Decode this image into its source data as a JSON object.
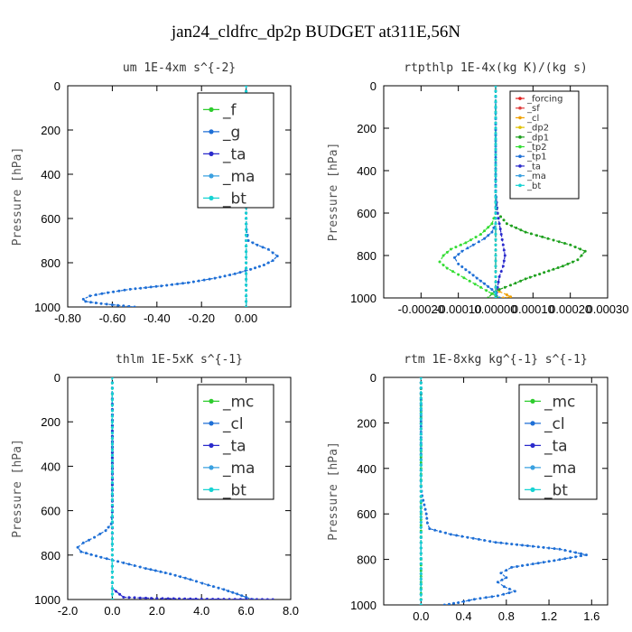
{
  "figure": {
    "title": "jan24_cldfrc_dp2p  BUDGET at311E,56N"
  },
  "chart_data": [
    {
      "type": "line",
      "title": "um  1E-4xm s^{-2}",
      "ylabel": "Pressure [hPa]",
      "xlim": [
        -0.8,
        0.2
      ],
      "ylim": [
        0,
        1000
      ],
      "y_inverted": true,
      "xticks": [
        -0.8,
        -0.6,
        -0.4,
        -0.2,
        0.0
      ],
      "xtick_labels": [
        "-0.80",
        "-0.60",
        "-0.40",
        "-0.20",
        "0.00"
      ],
      "yticks": [
        0,
        200,
        400,
        600,
        800,
        1000
      ],
      "ytick_labels": [
        "0",
        "200",
        "400",
        "600",
        "800",
        "1000"
      ],
      "legend": {
        "position": "top-right",
        "font_size": 17
      },
      "series": [
        {
          "name": "_f",
          "color": "#2ecc2e",
          "x": [
            0,
            0,
            0,
            0,
            0,
            0,
            0,
            0,
            0,
            0,
            0
          ],
          "y": [
            0,
            100,
            200,
            300,
            400,
            500,
            600,
            700,
            800,
            900,
            1000
          ]
        },
        {
          "name": "_g",
          "color": "#1e6fd6",
          "x": [
            0,
            0,
            0,
            0,
            0.002,
            0.01,
            0.05,
            0.1,
            0.14,
            0.12,
            0.08,
            0.02,
            -0.05,
            -0.14,
            -0.26,
            -0.38,
            -0.52,
            -0.62,
            -0.7,
            -0.73,
            -0.72,
            -0.65,
            -0.5
          ],
          "y": [
            0,
            200,
            400,
            600,
            650,
            700,
            720,
            740,
            770,
            790,
            810,
            830,
            850,
            870,
            890,
            905,
            920,
            935,
            950,
            965,
            975,
            985,
            1000
          ]
        },
        {
          "name": "_ta",
          "color": "#2b2bcc",
          "x": [
            0,
            0,
            0,
            0,
            0
          ],
          "y": [
            0,
            250,
            500,
            750,
            1000
          ]
        },
        {
          "name": "_ma",
          "color": "#3aa0e0",
          "x": [
            0,
            0,
            0,
            0,
            0
          ],
          "y": [
            0,
            250,
            500,
            750,
            1000
          ]
        },
        {
          "name": "_bt",
          "color": "#17d3d3",
          "x": [
            0,
            0,
            0,
            0,
            0
          ],
          "y": [
            0,
            250,
            500,
            750,
            1000
          ]
        }
      ]
    },
    {
      "type": "line",
      "title": "rtpthlp  1E-4x(kg K)/(kg s)",
      "ylabel": "Pressure [hPa]",
      "xlim": [
        -0.0003,
        0.0003
      ],
      "ylim": [
        0,
        1000
      ],
      "y_inverted": true,
      "xticks": [
        -0.0002,
        -0.0001,
        0.0,
        0.0001,
        0.0002,
        0.0003
      ],
      "xtick_labels": [
        "-0.00020",
        "-0.00010",
        "0.00000",
        "0.00010",
        "0.00020",
        "0.00030"
      ],
      "yticks": [
        0,
        200,
        400,
        600,
        800,
        1000
      ],
      "ytick_labels": [
        "0",
        "200",
        "400",
        "600",
        "800",
        "1000"
      ],
      "legend": {
        "position": "top-right",
        "font_size": 10
      },
      "series": [
        {
          "name": "_forcing",
          "color": "#e02020",
          "x": [
            0,
            0,
            0,
            0,
            0
          ],
          "y": [
            0,
            250,
            500,
            750,
            1000
          ]
        },
        {
          "name": "_sf",
          "color": "#e04040",
          "x": [
            0,
            0,
            0,
            0,
            0
          ],
          "y": [
            0,
            250,
            500,
            750,
            1000
          ]
        },
        {
          "name": "_cl",
          "color": "#f0a000",
          "x": [
            0,
            0,
            0,
            0,
            0,
            1e-05,
            3e-05,
            4e-05,
            2e-05
          ],
          "y": [
            0,
            600,
            800,
            900,
            950,
            970,
            985,
            995,
            1000
          ]
        },
        {
          "name": "_dp2",
          "color": "#e0c000",
          "x": [
            0,
            0,
            0,
            0
          ],
          "y": [
            0,
            500,
            900,
            1000
          ]
        },
        {
          "name": "_dp1",
          "color": "#1ea01e",
          "x": [
            0,
            0,
            5e-06,
            3e-05,
            8e-05,
            0.00014,
            0.0002,
            0.00024,
            0.00022,
            0.00018,
            0.00013,
            8e-05,
            4e-05,
            1e-05,
            -1e-05,
            -2e-05
          ],
          "y": [
            0,
            500,
            600,
            650,
            690,
            720,
            750,
            780,
            820,
            850,
            880,
            910,
            940,
            960,
            980,
            1000
          ]
        },
        {
          "name": "_tp2",
          "color": "#33dd33",
          "x": [
            0,
            0,
            -1e-05,
            -4e-05,
            -8e-05,
            -0.00012,
            -0.00014,
            -0.00015,
            -0.00013,
            -0.0001,
            -7e-05,
            -4e-05,
            -1e-05,
            1e-05
          ],
          "y": [
            0,
            600,
            650,
            700,
            740,
            770,
            800,
            830,
            860,
            890,
            920,
            950,
            980,
            1000
          ]
        },
        {
          "name": "_tp1",
          "color": "#1e6fd6",
          "x": [
            0,
            0,
            -1e-05,
            -3e-05,
            -6e-05,
            -9e-05,
            -0.00011,
            -0.0001,
            -7e-05,
            -4e-05,
            -1e-05,
            1e-05
          ],
          "y": [
            0,
            650,
            690,
            720,
            750,
            780,
            810,
            840,
            880,
            920,
            960,
            1000
          ]
        },
        {
          "name": "_ta",
          "color": "#2b2bcc",
          "x": [
            0,
            0,
            5e-06,
            1e-05,
            1.5e-05,
            2e-05,
            2.5e-05,
            2e-05,
            1e-05,
            5e-06,
            0
          ],
          "y": [
            0,
            500,
            600,
            650,
            700,
            750,
            800,
            850,
            900,
            950,
            1000
          ]
        },
        {
          "name": "_ma",
          "color": "#3aa0e0",
          "x": [
            0,
            0,
            0,
            0,
            0
          ],
          "y": [
            0,
            250,
            500,
            750,
            1000
          ]
        },
        {
          "name": "_bt",
          "color": "#17d3d3",
          "x": [
            0,
            0,
            0,
            0,
            0
          ],
          "y": [
            0,
            250,
            500,
            750,
            1000
          ]
        }
      ]
    },
    {
      "type": "line",
      "title": "thlm  1E-5xK s^{-1}",
      "ylabel": "Pressure [hPa]",
      "xlim": [
        -2.0,
        8.0
      ],
      "ylim": [
        0,
        1000
      ],
      "y_inverted": true,
      "xticks": [
        -2.0,
        0.0,
        2.0,
        4.0,
        6.0,
        8.0
      ],
      "xtick_labels": [
        "-2.0",
        "0.0",
        "2.0",
        "4.0",
        "6.0",
        "8.0"
      ],
      "yticks": [
        0,
        200,
        400,
        600,
        800,
        1000
      ],
      "ytick_labels": [
        "0",
        "200",
        "400",
        "600",
        "800",
        "1000"
      ],
      "legend": {
        "position": "top-right",
        "font_size": 17
      },
      "series": [
        {
          "name": "_mc",
          "color": "#2ecc2e",
          "x": [
            0,
            0,
            0,
            0,
            0,
            0,
            0,
            0,
            0,
            0,
            0
          ],
          "y": [
            0,
            100,
            200,
            300,
            400,
            500,
            600,
            700,
            800,
            900,
            1000
          ]
        },
        {
          "name": "_cl",
          "color": "#1e6fd6",
          "x": [
            0,
            0,
            -0.05,
            -0.3,
            -0.8,
            -1.3,
            -1.55,
            -1.4,
            -0.5,
            0.5,
            1.5,
            2.6,
            3.5,
            4.3,
            5.0,
            5.6,
            6.0,
            6.3
          ],
          "y": [
            0,
            600,
            660,
            690,
            720,
            745,
            765,
            785,
            810,
            835,
            860,
            885,
            910,
            935,
            955,
            975,
            990,
            1000
          ]
        },
        {
          "name": "_ta",
          "color": "#2b2bcc",
          "x": [
            0,
            0,
            0,
            0.5,
            2,
            4,
            6,
            7.2
          ],
          "y": [
            0,
            800,
            950,
            990,
            995,
            998,
            999,
            1000
          ]
        },
        {
          "name": "_ma",
          "color": "#3aa0e0",
          "x": [
            0,
            0,
            0,
            0,
            0
          ],
          "y": [
            0,
            250,
            500,
            750,
            1000
          ]
        },
        {
          "name": "_bt",
          "color": "#17d3d3",
          "x": [
            0,
            0,
            0,
            0,
            0
          ],
          "y": [
            0,
            250,
            500,
            750,
            1000
          ]
        }
      ]
    },
    {
      "type": "line",
      "title": "rtm  1E-8xkg kg^{-1} s^{-1}",
      "ylabel": "Pressure [hPa]",
      "xlim": [
        -0.35,
        1.75
      ],
      "ylim": [
        0,
        1000
      ],
      "y_inverted": true,
      "xticks": [
        0.0,
        0.4,
        0.8,
        1.2,
        1.6
      ],
      "xtick_labels": [
        "0.0",
        "0.4",
        "0.8",
        "1.2",
        "1.6"
      ],
      "yticks": [
        0,
        200,
        400,
        600,
        800,
        1000
      ],
      "ytick_labels": [
        "0",
        "200",
        "400",
        "600",
        "800",
        "1000"
      ],
      "legend": {
        "position": "top-right",
        "font_size": 17
      },
      "series": [
        {
          "name": "_mc",
          "color": "#2ecc2e",
          "x": [
            0,
            0,
            0,
            0,
            0,
            0,
            0,
            0,
            0,
            0,
            0
          ],
          "y": [
            0,
            100,
            200,
            300,
            400,
            500,
            600,
            700,
            800,
            900,
            1000
          ]
        },
        {
          "name": "_cl",
          "color": "#1e6fd6",
          "x": [
            0,
            0,
            0.01,
            0.03,
            0.05,
            0.06,
            0.08,
            0.28,
            0.7,
            1.3,
            1.55,
            1.25,
            0.85,
            0.75,
            0.8,
            0.72,
            0.78,
            0.88,
            0.72,
            0.5,
            0.35,
            0.22
          ],
          "y": [
            0,
            480,
            520,
            560,
            600,
            640,
            665,
            690,
            725,
            755,
            780,
            805,
            835,
            860,
            880,
            900,
            920,
            940,
            960,
            975,
            990,
            1000
          ]
        },
        {
          "name": "_ta",
          "color": "#2b2bcc",
          "x": [
            0,
            0,
            0,
            0,
            0
          ],
          "y": [
            0,
            250,
            500,
            750,
            1000
          ]
        },
        {
          "name": "_ma",
          "color": "#3aa0e0",
          "x": [
            0,
            0,
            0,
            0,
            0
          ],
          "y": [
            0,
            250,
            500,
            750,
            1000
          ]
        },
        {
          "name": "_bt",
          "color": "#17d3d3",
          "x": [
            0,
            0,
            0,
            0,
            0
          ],
          "y": [
            0,
            250,
            500,
            750,
            1000
          ]
        }
      ]
    }
  ]
}
